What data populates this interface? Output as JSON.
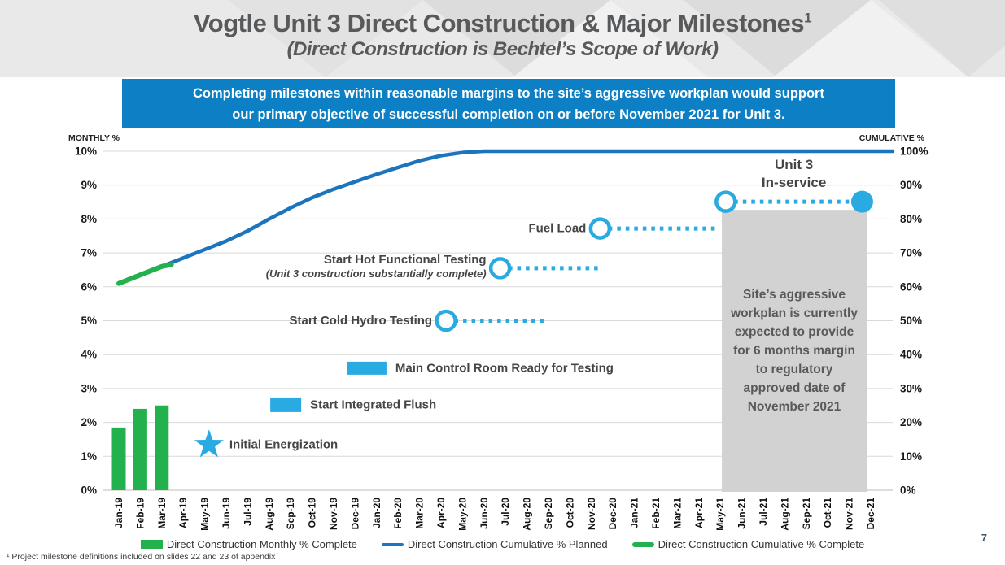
{
  "slide": {
    "title": "Vogtle Unit 3 Direct Construction & Major Milestones",
    "title_superscript": "1",
    "subtitle": "(Direct Construction is Bechtel’s Scope of Work)",
    "banner_line1": "Completing milestones within reasonable margins to the site’s aggressive workplan would support",
    "banner_line2": "our primary objective of successful completion on or before November 2021 for Unit 3.",
    "footnote": "¹ Project milestone definitions included on slides 22 and 23 of appendix",
    "page_number": "7"
  },
  "colors": {
    "banner_blue": "#0d80c5",
    "planned_blue": "#1c75bc",
    "milestone_cyan": "#29abe2",
    "green": "#22b14c",
    "gray_box": "#d2d2d2",
    "gridline": "#d9d9d9"
  },
  "chart_data": {
    "type": "line+bar",
    "left_axis": {
      "label": "MONTHLY %",
      "ticks": [
        "10%",
        "9%",
        "8%",
        "7%",
        "6%",
        "5%",
        "4%",
        "3%",
        "2%",
        "1%",
        "0%"
      ],
      "range": [
        0,
        10
      ]
    },
    "right_axis": {
      "label": "CUMULATIVE %",
      "ticks": [
        "100%",
        "90%",
        "80%",
        "70%",
        "60%",
        "50%",
        "40%",
        "30%",
        "20%",
        "10%",
        "0%"
      ],
      "range": [
        0,
        100
      ]
    },
    "categories": [
      "Jan-19",
      "Feb-19",
      "Mar-19",
      "Apr-19",
      "May-19",
      "Jun-19",
      "Jul-19",
      "Aug-19",
      "Sep-19",
      "Oct-19",
      "Nov-19",
      "Dec-19",
      "Jan-20",
      "Feb-20",
      "Mar-20",
      "Apr-20",
      "May-20",
      "Jun-20",
      "Jul-20",
      "Aug-20",
      "Sep-20",
      "Oct-20",
      "Nov-20",
      "Dec-20",
      "Jan-21",
      "Feb-21",
      "Mar-21",
      "Apr-21",
      "May-21",
      "Jun-21",
      "Jul-21",
      "Aug-21",
      "Sep-21",
      "Oct-21",
      "Nov-21",
      "Dec-21"
    ],
    "series": [
      {
        "name": "Direct Construction Monthly % Complete",
        "type": "bar",
        "axis": "left",
        "months": [
          "Jan-19",
          "Feb-19",
          "Mar-19"
        ],
        "values": [
          1.85,
          2.4,
          2.5
        ]
      },
      {
        "name": "Direct Construction Cumulative % Planned",
        "type": "line",
        "axis": "right",
        "values": [
          61,
          63.5,
          66,
          68.5,
          71,
          73.5,
          76.5,
          80,
          83.3,
          86.3,
          88.8,
          91,
          93.2,
          95.2,
          97.2,
          98.7,
          99.6,
          100,
          100,
          100,
          100,
          100,
          100,
          100,
          100,
          100,
          100,
          100,
          100,
          100,
          100,
          100,
          100,
          100,
          100,
          100
        ]
      },
      {
        "name": "Direct Construction Cumulative % Complete",
        "type": "line",
        "axis": "right",
        "months": [
          "Jan-19",
          "Feb-19",
          "Mar-19"
        ],
        "points": [
          [
            0,
            61
          ],
          [
            1,
            63.5
          ],
          [
            2,
            66
          ],
          [
            2.45,
            66.6
          ]
        ]
      }
    ],
    "milestones": [
      {
        "label": "Initial Energization",
        "marker": "star",
        "month": "May-19",
        "x": 4.2,
        "v": 1.34,
        "side": "right"
      },
      {
        "label": "Start Integrated Flush",
        "marker": "rect",
        "month": "Aug-19",
        "x": 7.77,
        "v": 2.52,
        "w": 38,
        "h": 18,
        "side": "right"
      },
      {
        "label": "Main Control Room Ready for Testing",
        "marker": "rect",
        "month": "Dec-19",
        "x": 11.55,
        "v": 3.6,
        "w": 48,
        "h": 16,
        "side": "right"
      },
      {
        "label": "Start Cold Hydro Testing",
        "marker": "circle",
        "month": "Apr-20",
        "x": 15.23,
        "v": 5.0,
        "dot_to": 19.77,
        "side": "left"
      },
      {
        "label": "Start Hot Functional Testing",
        "sublabel": "(Unit 3 construction substantially complete)",
        "marker": "circle",
        "month": "Jul-20",
        "x": 17.75,
        "v": 6.55,
        "dot_to": 22.5,
        "side": "left"
      },
      {
        "label": "Fuel Load",
        "marker": "circle",
        "month": "Nov-20",
        "x": 22.4,
        "v": 7.72,
        "dot_to": 27.95,
        "side": "left"
      },
      {
        "label": "Unit 3\nIn-service",
        "marker": "circle",
        "month": "May-21",
        "end_month": "Nov-21",
        "x": 28.25,
        "v": 8.51,
        "dot_to": 34.6,
        "end_marker": "filled-circle",
        "side": "above"
      }
    ],
    "shaded_region": {
      "from": "May-21",
      "to": "Nov-21",
      "from_i": 28.57,
      "to_i": 35.31,
      "top_v": 8.27,
      "text": "Site’s aggressive workplan is currently expected to provide for 6 months margin to regulatory approved date of November 2021"
    }
  },
  "legend": [
    {
      "swatch": "bar",
      "label": "Direct Construction Monthly % Complete"
    },
    {
      "swatch": "line-planned",
      "label": "Direct Construction Cumulative % Planned"
    },
    {
      "swatch": "line-complete",
      "label": "Direct Construction Cumulative % Complete"
    }
  ]
}
